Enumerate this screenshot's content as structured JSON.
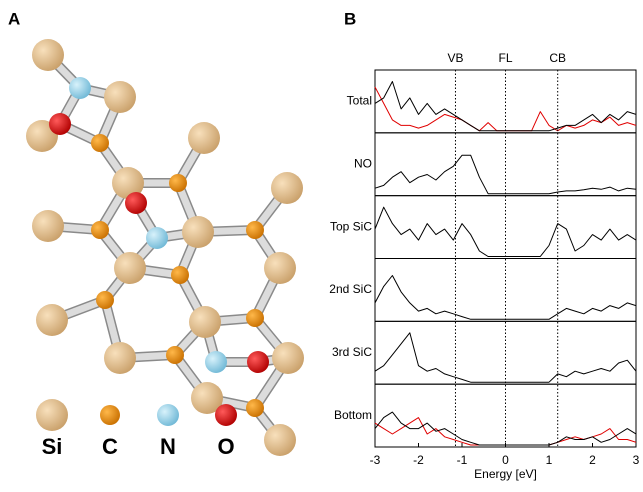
{
  "panel_a": {
    "label": "A",
    "legend": [
      "Si",
      "C",
      "N",
      "O"
    ]
  },
  "panel_b": {
    "label": "B"
  },
  "chart_data": [
    {
      "type": "line",
      "title": "Total",
      "xlim": [
        -3,
        3
      ],
      "ylim": [
        0,
        1
      ],
      "annotations": [
        {
          "text": "VB",
          "x": -1.15
        },
        {
          "text": "FL",
          "x": 0
        },
        {
          "text": "CB",
          "x": 1.2
        }
      ],
      "x": [
        -3,
        -2.8,
        -2.6,
        -2.4,
        -2.2,
        -2,
        -1.8,
        -1.6,
        -1.4,
        -1.2,
        -1,
        -0.8,
        -0.6,
        -0.4,
        -0.2,
        0,
        0.2,
        0.4,
        0.6,
        0.8,
        1,
        1.2,
        1.4,
        1.6,
        1.8,
        2,
        2.2,
        2.4,
        2.6,
        2.8,
        3
      ],
      "series": [
        {
          "color": "#e00000",
          "values": [
            0.8,
            0.5,
            0.2,
            0.1,
            0.1,
            0.05,
            0.1,
            0.2,
            0.3,
            0.25,
            0.2,
            0.1,
            0,
            0.15,
            0,
            0,
            0,
            0,
            0,
            0.35,
            0.1,
            0,
            0.1,
            0.05,
            0.1,
            0.2,
            0.15,
            0.25,
            0.1,
            0.15,
            0.1
          ]
        },
        {
          "color": "#000000",
          "values": [
            0.5,
            0.6,
            0.9,
            0.4,
            0.6,
            0.3,
            0.5,
            0.3,
            0.4,
            0.3,
            0.2,
            0.1,
            0,
            0,
            0,
            0,
            0,
            0,
            0,
            0,
            0,
            0.05,
            0.1,
            0.1,
            0.2,
            0.3,
            0.15,
            0.3,
            0.2,
            0.35,
            0.3
          ]
        }
      ]
    },
    {
      "type": "line",
      "title": "NO",
      "xlim": [
        -3,
        3
      ],
      "ylim": [
        0,
        1
      ],
      "x": [
        -3,
        -2.8,
        -2.6,
        -2.4,
        -2.2,
        -2,
        -1.8,
        -1.6,
        -1.4,
        -1.2,
        -1,
        -0.8,
        -0.6,
        -0.4,
        -0.2,
        0,
        0.2,
        0.4,
        0.6,
        0.8,
        1,
        1.2,
        1.4,
        1.6,
        1.8,
        2,
        2.2,
        2.4,
        2.6,
        2.8,
        3
      ],
      "series": [
        {
          "color": "#000000",
          "values": [
            0.1,
            0.15,
            0.3,
            0.4,
            0.2,
            0.3,
            0.35,
            0.25,
            0.4,
            0.5,
            0.7,
            0.7,
            0.3,
            0,
            0,
            0,
            0,
            0,
            0,
            0,
            0,
            0.03,
            0.05,
            0.05,
            0.07,
            0.1,
            0.08,
            0.12,
            0.05,
            0.1,
            0.08
          ]
        }
      ]
    },
    {
      "type": "line",
      "title": "Top SiC",
      "xlim": [
        -3,
        3
      ],
      "ylim": [
        0,
        1
      ],
      "x": [
        -3,
        -2.8,
        -2.6,
        -2.4,
        -2.2,
        -2,
        -1.8,
        -1.6,
        -1.4,
        -1.2,
        -1,
        -0.8,
        -0.6,
        -0.4,
        -0.2,
        0,
        0.2,
        0.4,
        0.6,
        0.8,
        1,
        1.2,
        1.4,
        1.6,
        1.8,
        2,
        2.2,
        2.4,
        2.6,
        2.8,
        3
      ],
      "series": [
        {
          "color": "#000000",
          "values": [
            0.5,
            0.9,
            0.6,
            0.4,
            0.5,
            0.3,
            0.6,
            0.4,
            0.5,
            0.3,
            0.6,
            0.4,
            0.1,
            0,
            0,
            0,
            0,
            0,
            0,
            0,
            0.2,
            0.6,
            0.5,
            0.1,
            0.2,
            0.4,
            0.3,
            0.5,
            0.3,
            0.4,
            0.3
          ]
        }
      ]
    },
    {
      "type": "line",
      "title": "2nd SiC",
      "xlim": [
        -3,
        3
      ],
      "ylim": [
        0,
        1
      ],
      "x": [
        -3,
        -2.8,
        -2.6,
        -2.4,
        -2.2,
        -2,
        -1.8,
        -1.6,
        -1.4,
        -1.2,
        -1,
        -0.8,
        -0.6,
        -0.4,
        -0.2,
        0,
        0.2,
        0.4,
        0.6,
        0.8,
        1,
        1.2,
        1.4,
        1.6,
        1.8,
        2,
        2.2,
        2.4,
        2.6,
        2.8,
        3
      ],
      "series": [
        {
          "color": "#000000",
          "values": [
            0.3,
            0.6,
            0.8,
            0.5,
            0.3,
            0.15,
            0.2,
            0.1,
            0.15,
            0.1,
            0.05,
            0,
            0,
            0,
            0,
            0,
            0,
            0,
            0,
            0,
            0,
            0.1,
            0.2,
            0.15,
            0.1,
            0.2,
            0.15,
            0.25,
            0.2,
            0.3,
            0.25
          ]
        }
      ]
    },
    {
      "type": "line",
      "title": "3rd SiC",
      "xlim": [
        -3,
        3
      ],
      "ylim": [
        0,
        1
      ],
      "x": [
        -3,
        -2.8,
        -2.6,
        -2.4,
        -2.2,
        -2,
        -1.8,
        -1.6,
        -1.4,
        -1.2,
        -1,
        -0.8,
        -0.6,
        -0.4,
        -0.2,
        0,
        0.2,
        0.4,
        0.6,
        0.8,
        1,
        1.2,
        1.4,
        1.6,
        1.8,
        2,
        2.2,
        2.4,
        2.6,
        2.8,
        3
      ],
      "series": [
        {
          "color": "#000000",
          "values": [
            0.2,
            0.3,
            0.5,
            0.7,
            0.9,
            0.3,
            0.2,
            0.25,
            0.15,
            0.1,
            0.05,
            0,
            0,
            0,
            0,
            0,
            0,
            0,
            0,
            0,
            0,
            0.15,
            0.1,
            0.2,
            0.15,
            0.2,
            0.25,
            0.2,
            0.35,
            0.4,
            0.2
          ]
        }
      ]
    },
    {
      "type": "line",
      "title": "Bottom",
      "xlim": [
        -3,
        3
      ],
      "ylim": [
        0,
        1
      ],
      "xticks": [
        -3,
        -2,
        -1,
        0,
        1,
        2,
        3
      ],
      "xlabel": "Energy [eV]",
      "x": [
        -3,
        -2.8,
        -2.6,
        -2.4,
        -2.2,
        -2,
        -1.8,
        -1.6,
        -1.4,
        -1.2,
        -1,
        -0.8,
        -0.6,
        -0.4,
        -0.2,
        0,
        0.2,
        0.4,
        0.6,
        0.8,
        1,
        1.2,
        1.4,
        1.6,
        1.8,
        2,
        2.2,
        2.4,
        2.6,
        2.8,
        3
      ],
      "series": [
        {
          "color": "#e00000",
          "values": [
            0.4,
            0.3,
            0.2,
            0.3,
            0.4,
            0.5,
            0.2,
            0.3,
            0.15,
            0.1,
            0.05,
            0,
            0,
            0,
            0,
            0,
            0,
            0,
            0,
            0,
            0,
            0.05,
            0.1,
            0.15,
            0.1,
            0.15,
            0.2,
            0.3,
            0.1,
            0.1,
            0.05
          ]
        },
        {
          "color": "#000000",
          "values": [
            0.3,
            0.5,
            0.6,
            0.4,
            0.3,
            0.3,
            0.4,
            0.25,
            0.3,
            0.2,
            0.1,
            0.05,
            0,
            0,
            0,
            0,
            0,
            0,
            0,
            0,
            0,
            0.05,
            0.15,
            0.1,
            0.1,
            0.15,
            0.05,
            0.1,
            0.2,
            0.3,
            0.2
          ]
        }
      ]
    }
  ]
}
